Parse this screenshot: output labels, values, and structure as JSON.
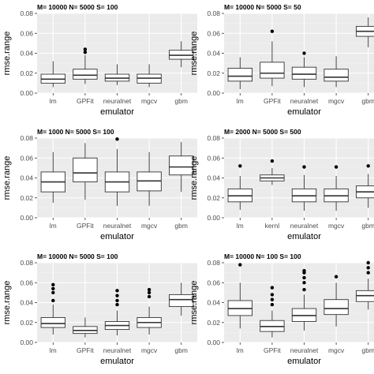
{
  "chart_data": [
    {
      "type": "boxplot",
      "title": "M= 10000 N= 5000 S= 100",
      "xlabel": "emulator",
      "ylabel": "rmse.range",
      "ylim": [
        0,
        0.08
      ],
      "yticks": [
        "0.00",
        "0.02",
        "0.04",
        "0.06",
        "0.08"
      ],
      "grid": true,
      "categories": [
        "lm",
        "GPFit",
        "neuralnet",
        "mgcv",
        "gbm"
      ],
      "boxes": [
        {
          "min": 0.006,
          "q1": 0.01,
          "median": 0.014,
          "q3": 0.019,
          "max": 0.032,
          "outliers": []
        },
        {
          "min": 0.009,
          "q1": 0.014,
          "median": 0.018,
          "q3": 0.024,
          "max": 0.038,
          "outliers": [
            0.041,
            0.044
          ]
        },
        {
          "min": 0.008,
          "q1": 0.012,
          "median": 0.015,
          "q3": 0.019,
          "max": 0.029,
          "outliers": []
        },
        {
          "min": 0.006,
          "q1": 0.01,
          "median": 0.015,
          "q3": 0.019,
          "max": 0.029,
          "outliers": []
        },
        {
          "min": 0.026,
          "q1": 0.034,
          "median": 0.038,
          "q3": 0.043,
          "max": 0.052,
          "outliers": []
        }
      ]
    },
    {
      "type": "boxplot",
      "title": "M= 10000 N= 5000 S= 50",
      "xlabel": "emulator",
      "ylabel": "rmse.range",
      "ylim": [
        0,
        0.08
      ],
      "yticks": [
        "0.00",
        "0.02",
        "0.04",
        "0.06",
        "0.08"
      ],
      "grid": true,
      "categories": [
        "lm",
        "GPFit",
        "neuralnet",
        "mgcv",
        "gbm"
      ],
      "boxes": [
        {
          "min": 0.004,
          "q1": 0.012,
          "median": 0.017,
          "q3": 0.025,
          "max": 0.036,
          "outliers": []
        },
        {
          "min": 0.007,
          "q1": 0.015,
          "median": 0.02,
          "q3": 0.031,
          "max": 0.052,
          "outliers": [
            0.062
          ]
        },
        {
          "min": 0.006,
          "q1": 0.014,
          "median": 0.019,
          "q3": 0.026,
          "max": 0.036,
          "outliers": [
            0.04
          ]
        },
        {
          "min": 0.006,
          "q1": 0.012,
          "median": 0.016,
          "q3": 0.024,
          "max": 0.037,
          "outliers": []
        },
        {
          "min": 0.046,
          "q1": 0.057,
          "median": 0.062,
          "q3": 0.067,
          "max": 0.076,
          "outliers": []
        }
      ]
    },
    {
      "type": "boxplot",
      "title": "M= 1000 N= 5000 S= 100",
      "xlabel": "emulator",
      "ylabel": "rmse.range",
      "ylim": [
        0,
        0.08
      ],
      "yticks": [
        "0.00",
        "0.02",
        "0.04",
        "0.06",
        "0.08"
      ],
      "grid": true,
      "categories": [
        "lm",
        "GPFit",
        "neuralnet",
        "mgcv",
        "gbm"
      ],
      "boxes": [
        {
          "min": 0.015,
          "q1": 0.026,
          "median": 0.036,
          "q3": 0.046,
          "max": 0.066,
          "outliers": []
        },
        {
          "min": 0.018,
          "q1": 0.036,
          "median": 0.045,
          "q3": 0.06,
          "max": 0.075,
          "outliers": []
        },
        {
          "min": 0.012,
          "q1": 0.026,
          "median": 0.036,
          "q3": 0.046,
          "max": 0.069,
          "outliers": [
            0.079
          ]
        },
        {
          "min": 0.012,
          "q1": 0.027,
          "median": 0.037,
          "q3": 0.046,
          "max": 0.066,
          "outliers": []
        },
        {
          "min": 0.026,
          "q1": 0.043,
          "median": 0.051,
          "q3": 0.062,
          "max": 0.076,
          "outliers": []
        }
      ]
    },
    {
      "type": "boxplot",
      "title": "M= 2000 N= 5000 S= 500",
      "xlabel": "emulator",
      "ylabel": "rmse.range",
      "ylim": [
        0,
        0.08
      ],
      "yticks": [
        "0.00",
        "0.02",
        "0.04",
        "0.06",
        "0.08"
      ],
      "grid": true,
      "categories": [
        "lm",
        "kernl",
        "neuralnet",
        "mgcv",
        "gbm"
      ],
      "boxes": [
        {
          "min": 0.008,
          "q1": 0.016,
          "median": 0.022,
          "q3": 0.029,
          "max": 0.042,
          "outliers": [
            0.052
          ]
        },
        {
          "min": 0.033,
          "q1": 0.037,
          "median": 0.04,
          "q3": 0.043,
          "max": 0.05,
          "outliers": [
            0.057
          ]
        },
        {
          "min": 0.007,
          "q1": 0.016,
          "median": 0.022,
          "q3": 0.029,
          "max": 0.043,
          "outliers": [
            0.051
          ]
        },
        {
          "min": 0.007,
          "q1": 0.016,
          "median": 0.022,
          "q3": 0.029,
          "max": 0.042,
          "outliers": [
            0.051
          ]
        },
        {
          "min": 0.01,
          "q1": 0.02,
          "median": 0.026,
          "q3": 0.032,
          "max": 0.044,
          "outliers": [
            0.052
          ]
        }
      ]
    },
    {
      "type": "boxplot",
      "title": "M= 10000 N= 5000 S= 100",
      "xlabel": "emulator",
      "ylabel": "rmse.range",
      "ylim": [
        0,
        0.08
      ],
      "yticks": [
        "0.00",
        "0.02",
        "0.04",
        "0.06",
        "0.08"
      ],
      "grid": true,
      "categories": [
        "lm",
        "GPFit",
        "neuralnet",
        "mgcv",
        "gbm"
      ],
      "boxes": [
        {
          "min": 0.008,
          "q1": 0.015,
          "median": 0.019,
          "q3": 0.025,
          "max": 0.038,
          "outliers": [
            0.042,
            0.05,
            0.054,
            0.058
          ]
        },
        {
          "min": 0.005,
          "q1": 0.009,
          "median": 0.012,
          "q3": 0.016,
          "max": 0.025,
          "outliers": []
        },
        {
          "min": 0.007,
          "q1": 0.013,
          "median": 0.017,
          "q3": 0.021,
          "max": 0.032,
          "outliers": [
            0.038,
            0.042,
            0.047,
            0.052
          ]
        },
        {
          "min": 0.008,
          "q1": 0.015,
          "median": 0.02,
          "q3": 0.025,
          "max": 0.036,
          "outliers": [
            0.046,
            0.05,
            0.053
          ]
        },
        {
          "min": 0.027,
          "q1": 0.036,
          "median": 0.043,
          "q3": 0.048,
          "max": 0.06,
          "outliers": []
        }
      ]
    },
    {
      "type": "boxplot",
      "title": "M= 10000 N= 100 S= 100",
      "xlabel": "emulator",
      "ylabel": "rmse.range",
      "ylim": [
        0,
        0.08
      ],
      "yticks": [
        "0.00",
        "0.02",
        "0.04",
        "0.06",
        "0.08"
      ],
      "grid": true,
      "categories": [
        "lm",
        "GPFit",
        "neuralnet",
        "mgcv",
        "gbm"
      ],
      "boxes": [
        {
          "min": 0.014,
          "q1": 0.027,
          "median": 0.034,
          "q3": 0.042,
          "max": 0.06,
          "outliers": [
            0.078
          ]
        },
        {
          "min": 0.005,
          "q1": 0.011,
          "median": 0.016,
          "q3": 0.022,
          "max": 0.032,
          "outliers": [
            0.038,
            0.043,
            0.048,
            0.055
          ]
        },
        {
          "min": 0.012,
          "q1": 0.021,
          "median": 0.027,
          "q3": 0.034,
          "max": 0.048,
          "outliers": [
            0.053,
            0.06,
            0.065,
            0.07,
            0.072
          ]
        },
        {
          "min": 0.016,
          "q1": 0.028,
          "median": 0.034,
          "q3": 0.043,
          "max": 0.06,
          "outliers": [
            0.066
          ]
        },
        {
          "min": 0.033,
          "q1": 0.041,
          "median": 0.047,
          "q3": 0.052,
          "max": 0.064,
          "outliers": [
            0.07,
            0.075,
            0.08
          ]
        }
      ]
    }
  ]
}
